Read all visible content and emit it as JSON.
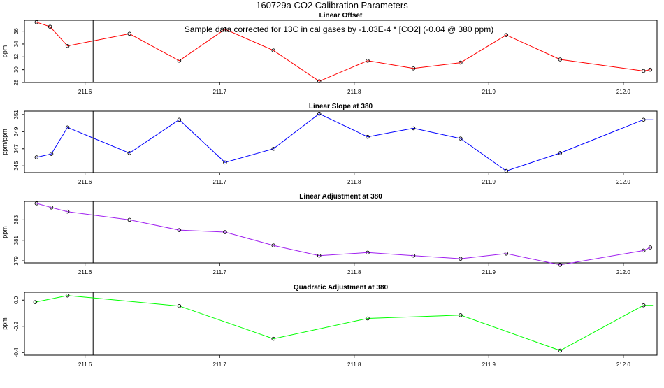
{
  "page_title": "160729a   CO2 Calibration Parameters",
  "annotation": "Sample data corrected for 13C in cal gases by -1.03E-4 * [CO2] (-0.04 @ 380 ppm)",
  "vertical_marker_x": 211.606,
  "chart_data": [
    {
      "type": "line",
      "title": "Linear Offset",
      "ylabel": "ppm",
      "color": "#ff0000",
      "xlim": [
        211.555,
        212.025
      ],
      "ylim": [
        28,
        37.7
      ],
      "x_ticks": [
        211.6,
        211.7,
        211.8,
        211.9,
        212.0
      ],
      "x_tick_labels": [
        "211.6",
        "211.7",
        "211.8",
        "211.9",
        "212.0"
      ],
      "y_ticks": [
        28,
        30,
        32,
        34,
        36
      ],
      "y_tick_labels": [
        "28",
        "30",
        "32",
        "34",
        "36"
      ],
      "tail_x": null,
      "x": [
        211.564,
        211.574,
        211.587,
        211.633,
        211.67,
        211.704,
        211.74,
        211.774,
        211.81,
        211.844,
        211.879,
        211.913,
        211.953,
        212.015,
        212.02
      ],
      "y": [
        37.4,
        36.7,
        33.7,
        35.6,
        31.4,
        36.3,
        33.0,
        28.2,
        31.4,
        30.2,
        31.1,
        35.4,
        31.6,
        29.8,
        30.0
      ]
    },
    {
      "type": "line",
      "title": "Linear Slope at 380",
      "ylabel": "ppm/ppm",
      "color": "#0000ff",
      "xlim": [
        211.555,
        212.025
      ],
      "ylim": [
        344.2,
        351.4
      ],
      "x_ticks": [
        211.6,
        211.7,
        211.8,
        211.9,
        212.0
      ],
      "x_tick_labels": [
        "211.6",
        "211.7",
        "211.8",
        "211.9",
        "212.0"
      ],
      "y_ticks": [
        345,
        347,
        349,
        351
      ],
      "y_tick_labels": [
        "345",
        "347",
        "349",
        "351"
      ],
      "tail_x": 212.022,
      "x": [
        211.564,
        211.575,
        211.587,
        211.633,
        211.67,
        211.704,
        211.74,
        211.774,
        211.81,
        211.844,
        211.879,
        211.913,
        211.953,
        212.015
      ],
      "y": [
        346.0,
        346.4,
        349.5,
        346.5,
        350.4,
        345.4,
        347.0,
        351.1,
        348.4,
        349.4,
        348.2,
        344.4,
        346.5,
        350.4
      ]
    },
    {
      "type": "line",
      "title": "Linear Adjustment at 380",
      "ylabel": "ppm",
      "color": "#a020f0",
      "xlim": [
        211.555,
        212.025
      ],
      "ylim": [
        378.8,
        384.8
      ],
      "x_ticks": [
        211.6,
        211.7,
        211.8,
        211.9,
        212.0
      ],
      "x_tick_labels": [
        "211.6",
        "211.7",
        "211.8",
        "211.9",
        "212.0"
      ],
      "y_ticks": [
        379,
        381,
        383
      ],
      "y_tick_labels": [
        "379",
        "381",
        "383"
      ],
      "tail_x": null,
      "x": [
        211.564,
        211.575,
        211.587,
        211.633,
        211.67,
        211.704,
        211.74,
        211.774,
        211.81,
        211.844,
        211.879,
        211.913,
        211.953,
        212.015,
        212.02
      ],
      "y": [
        384.6,
        384.2,
        383.8,
        383.0,
        382.0,
        381.8,
        380.5,
        379.5,
        379.8,
        379.5,
        379.2,
        379.7,
        378.6,
        380.0,
        380.3
      ]
    },
    {
      "type": "line",
      "title": "Quadratic Adjustment at 380",
      "ylabel": "ppm",
      "color": "#00ff00",
      "xlim": [
        211.555,
        212.025
      ],
      "ylim": [
        -0.42,
        0.06
      ],
      "x_ticks": [
        211.6,
        211.7,
        211.8,
        211.9,
        212.0
      ],
      "x_tick_labels": [
        "211.6",
        "211.7",
        "211.8",
        "211.9",
        "212.0"
      ],
      "y_ticks": [
        -0.4,
        -0.2,
        0.0
      ],
      "y_tick_labels": [
        "-0.4",
        "-0.2",
        "0.0"
      ],
      "tail_x": 212.022,
      "x": [
        211.563,
        211.587,
        211.67,
        211.74,
        211.81,
        211.879,
        211.953,
        212.015
      ],
      "y": [
        -0.015,
        0.035,
        -0.045,
        -0.295,
        -0.14,
        -0.115,
        -0.385,
        -0.04
      ]
    }
  ]
}
